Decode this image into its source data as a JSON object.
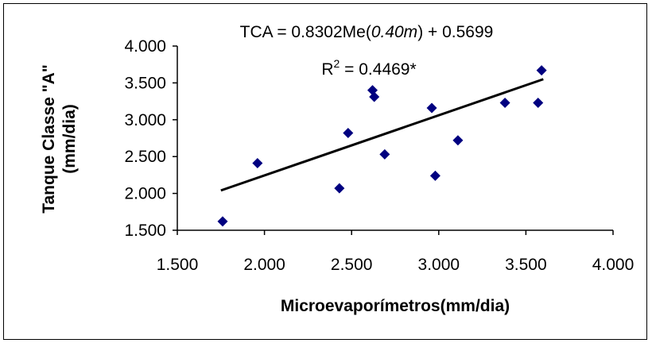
{
  "chart_data": {
    "type": "scatter",
    "title": "",
    "xlabel": "Microevaporímetros(mm/dia)",
    "ylabel_line1": "Tanque Classe \"A\"",
    "ylabel_line2": "(mm/dia)",
    "xlim": [
      1.5,
      4.0
    ],
    "ylim": [
      1.5,
      4.0
    ],
    "x_ticks": [
      "1.500",
      "2.000",
      "2.500",
      "3.000",
      "3.500",
      "4.000"
    ],
    "y_ticks": [
      "1.500",
      "2.000",
      "2.500",
      "3.000",
      "3.500",
      "4.000"
    ],
    "grid": false,
    "legend": "none",
    "marker_color": "#000080",
    "marker": "diamond",
    "series": [
      {
        "points": [
          {
            "x": 1.76,
            "y": 1.62
          },
          {
            "x": 1.96,
            "y": 2.41
          },
          {
            "x": 2.43,
            "y": 2.07
          },
          {
            "x": 2.48,
            "y": 2.82
          },
          {
            "x": 2.62,
            "y": 3.4
          },
          {
            "x": 2.63,
            "y": 3.31
          },
          {
            "x": 2.69,
            "y": 2.53
          },
          {
            "x": 2.96,
            "y": 3.16
          },
          {
            "x": 2.98,
            "y": 2.24
          },
          {
            "x": 3.11,
            "y": 2.72
          },
          {
            "x": 3.38,
            "y": 3.23
          },
          {
            "x": 3.57,
            "y": 3.23
          },
          {
            "x": 3.59,
            "y": 3.67
          }
        ]
      }
    ],
    "trendline": {
      "x": [
        1.75,
        3.6
      ],
      "y": [
        2.04,
        3.55
      ],
      "color": "#000000"
    },
    "annotations": {
      "equation_prefix": "TCA = 0.8302Me(",
      "equation_italic": "0.40m",
      "equation_suffix": ") + 0.5699",
      "r2_base": "R",
      "r2_exp": "2",
      "r2_value": " = 0.4469*"
    }
  }
}
